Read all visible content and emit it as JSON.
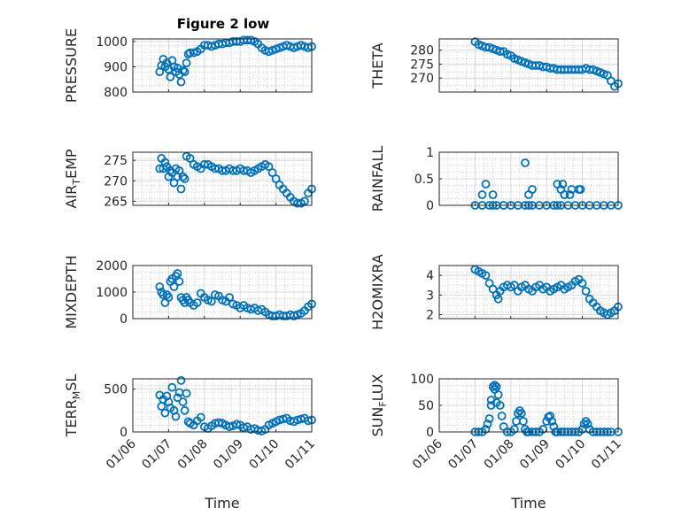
{
  "figure": {
    "title": "Figure 2 low",
    "marker_color": "#0072BD",
    "xlabel": "Time",
    "xtick_labels": [
      "01/06",
      "01/07",
      "01/08",
      "01/09",
      "01/10",
      "01/11"
    ]
  },
  "chart_data": [
    {
      "type": "scatter",
      "id": "pressure",
      "ylabel_main": "PRESSURE",
      "ylabel_sub": "",
      "xlim": [
        0,
        5
      ],
      "ylim": [
        800,
        1010
      ],
      "yticks": [
        800,
        900,
        1000
      ],
      "x": [
        0.75,
        0.8,
        0.85,
        0.9,
        0.95,
        1.0,
        1.05,
        1.1,
        1.15,
        1.2,
        1.25,
        1.3,
        1.35,
        1.4,
        1.45,
        1.5,
        1.55,
        1.6,
        1.7,
        1.8,
        1.9,
        2.0,
        2.1,
        2.2,
        2.3,
        2.4,
        2.5,
        2.6,
        2.7,
        2.8,
        2.9,
        3.0,
        3.1,
        3.2,
        3.3,
        3.4,
        3.5,
        3.6,
        3.7,
        3.8,
        3.9,
        4.0,
        4.1,
        4.2,
        4.3,
        4.4,
        4.5,
        4.6,
        4.7,
        4.8,
        4.9,
        5.0
      ],
      "y": [
        880,
        905,
        930,
        900,
        915,
        890,
        860,
        925,
        900,
        880,
        895,
        870,
        840,
        885,
        880,
        915,
        950,
        955,
        955,
        960,
        970,
        985,
        985,
        980,
        985,
        990,
        990,
        995,
        995,
        1000,
        1000,
        1000,
        1005,
        1005,
        1005,
        1000,
        990,
        975,
        965,
        960,
        965,
        970,
        975,
        980,
        985,
        980,
        975,
        980,
        985,
        980,
        975,
        980
      ]
    },
    {
      "type": "scatter",
      "id": "theta",
      "ylabel_main": "THETA",
      "ylabel_sub": "",
      "xlim": [
        0,
        5
      ],
      "ylim": [
        265,
        284
      ],
      "yticks": [
        270,
        275,
        280
      ],
      "x": [
        1.0,
        1.1,
        1.2,
        1.3,
        1.4,
        1.5,
        1.6,
        1.7,
        1.8,
        1.9,
        2.0,
        2.1,
        2.2,
        2.3,
        2.4,
        2.5,
        2.6,
        2.7,
        2.8,
        2.9,
        3.0,
        3.1,
        3.2,
        3.3,
        3.4,
        3.5,
        3.6,
        3.7,
        3.8,
        3.9,
        4.0,
        4.1,
        4.2,
        4.3,
        4.4,
        4.5,
        4.6,
        4.7,
        4.8,
        4.9,
        5.0
      ],
      "y": [
        283,
        282,
        281.5,
        281,
        281,
        280.5,
        280,
        279.5,
        279.5,
        278.5,
        278,
        277,
        276.5,
        276,
        275.5,
        275,
        274.5,
        274.5,
        274.5,
        274,
        274,
        273.5,
        273.5,
        273,
        273,
        273,
        273,
        273,
        273,
        273,
        273,
        273.5,
        273,
        273,
        272.5,
        272,
        271.5,
        271,
        269,
        267,
        268
      ]
    },
    {
      "type": "scatter",
      "id": "air_temp",
      "ylabel_main": "AIR",
      "ylabel_sub": "T",
      "ylabel_rest": "EMP",
      "xlim": [
        0,
        5
      ],
      "ylim": [
        264,
        277
      ],
      "yticks": [
        265,
        270,
        275
      ],
      "x": [
        0.75,
        0.8,
        0.85,
        0.9,
        0.95,
        1.0,
        1.05,
        1.1,
        1.15,
        1.2,
        1.25,
        1.3,
        1.35,
        1.4,
        1.45,
        1.5,
        1.6,
        1.7,
        1.8,
        1.9,
        2.0,
        2.1,
        2.2,
        2.3,
        2.4,
        2.5,
        2.6,
        2.7,
        2.8,
        2.9,
        3.0,
        3.1,
        3.2,
        3.3,
        3.4,
        3.5,
        3.6,
        3.7,
        3.8,
        3.9,
        4.0,
        4.1,
        4.2,
        4.3,
        4.4,
        4.5,
        4.6,
        4.7,
        4.8,
        4.9,
        5.0
      ],
      "y": [
        273,
        275.5,
        273,
        274.5,
        273.5,
        271,
        272.5,
        272,
        269.5,
        273,
        271,
        272.5,
        268,
        271,
        270.5,
        276,
        275.5,
        274,
        273.5,
        273,
        274,
        274,
        273.5,
        273,
        273,
        272.5,
        272.5,
        273,
        272.5,
        272.5,
        273,
        272.5,
        272.5,
        272,
        272.5,
        273,
        273.5,
        274,
        273.5,
        272,
        270.5,
        269,
        268,
        267,
        266,
        265,
        264.5,
        264.5,
        265,
        267,
        268
      ]
    },
    {
      "type": "scatter",
      "id": "rainfall",
      "ylabel_main": "RAINFALL",
      "ylabel_sub": "",
      "xlim": [
        0,
        5
      ],
      "ylim": [
        0,
        1
      ],
      "yticks": [
        0,
        0.5,
        1
      ],
      "x": [
        1.0,
        1.2,
        1.4,
        1.5,
        1.6,
        1.8,
        2.0,
        2.2,
        2.4,
        2.5,
        2.6,
        2.8,
        3.0,
        3.2,
        3.3,
        3.4,
        3.6,
        3.8,
        4.0,
        4.2,
        4.4,
        4.6,
        4.8,
        5.0,
        1.2,
        1.3,
        1.5,
        2.4,
        2.5,
        2.6,
        3.3,
        3.4,
        3.5,
        3.7,
        3.9,
        3.95,
        3.45,
        3.5,
        3.65
      ],
      "y": [
        0,
        0,
        0,
        0,
        0,
        0,
        0,
        0,
        0,
        0,
        0,
        0,
        0,
        0,
        0,
        0,
        0,
        0,
        0,
        0,
        0,
        0,
        0,
        0,
        0.2,
        0.4,
        0.2,
        0.8,
        0.2,
        0.3,
        0.4,
        0.3,
        0.2,
        0.3,
        0.3,
        0.3,
        0.4,
        0.2,
        0.2
      ]
    },
    {
      "type": "scatter",
      "id": "mixdepth",
      "ylabel_main": "MIXDEPTH",
      "ylabel_sub": "",
      "xlim": [
        0,
        5
      ],
      "ylim": [
        0,
        2000
      ],
      "yticks": [
        0,
        1000,
        2000
      ],
      "x": [
        0.75,
        0.8,
        0.85,
        0.9,
        0.95,
        1.0,
        1.05,
        1.1,
        1.15,
        1.2,
        1.25,
        1.3,
        1.35,
        1.4,
        1.45,
        1.5,
        1.55,
        1.6,
        1.7,
        1.8,
        1.9,
        2.0,
        2.1,
        2.2,
        2.3,
        2.4,
        2.5,
        2.6,
        2.7,
        2.8,
        2.9,
        3.0,
        3.1,
        3.2,
        3.3,
        3.4,
        3.5,
        3.6,
        3.7,
        3.8,
        3.9,
        4.0,
        4.1,
        4.2,
        4.3,
        4.4,
        4.5,
        4.6,
        4.7,
        4.8,
        4.9,
        5.0
      ],
      "y": [
        1200,
        1000,
        900,
        600,
        900,
        800,
        1400,
        1500,
        1200,
        1600,
        1700,
        1400,
        800,
        700,
        600,
        800,
        700,
        600,
        500,
        600,
        950,
        800,
        700,
        650,
        900,
        850,
        700,
        650,
        800,
        550,
        500,
        400,
        500,
        400,
        350,
        400,
        300,
        350,
        250,
        150,
        100,
        100,
        150,
        100,
        100,
        150,
        100,
        150,
        200,
        300,
        450,
        550
      ]
    },
    {
      "type": "scatter",
      "id": "h2omixra",
      "ylabel_main": "H2OMIXRA",
      "ylabel_sub": "",
      "xlim": [
        0,
        5
      ],
      "ylim": [
        1.8,
        4.5
      ],
      "yticks": [
        2,
        3,
        4
      ],
      "x": [
        1.0,
        1.1,
        1.2,
        1.3,
        1.4,
        1.5,
        1.6,
        1.7,
        1.8,
        1.9,
        2.0,
        2.1,
        2.2,
        2.3,
        2.4,
        2.5,
        2.6,
        2.7,
        2.8,
        2.9,
        3.0,
        3.1,
        3.2,
        3.3,
        3.4,
        3.5,
        3.6,
        3.7,
        3.8,
        3.9,
        4.0,
        4.1,
        4.2,
        4.3,
        4.4,
        4.5,
        4.6,
        4.7,
        4.8,
        4.9,
        5.0,
        1.65
      ],
      "y": [
        4.3,
        4.2,
        4.1,
        4.0,
        3.6,
        3.3,
        3.0,
        3.2,
        3.4,
        3.5,
        3.4,
        3.5,
        3.2,
        3.4,
        3.5,
        3.3,
        3.2,
        3.4,
        3.5,
        3.3,
        3.4,
        3.2,
        3.3,
        3.4,
        3.5,
        3.3,
        3.4,
        3.5,
        3.7,
        3.8,
        3.6,
        3.2,
        2.8,
        2.6,
        2.4,
        2.2,
        2.1,
        2.0,
        2.1,
        2.2,
        2.4,
        2.8
      ]
    },
    {
      "type": "scatter",
      "id": "terr_msl",
      "ylabel_main": "TERR",
      "ylabel_sub": "M",
      "ylabel_rest": "SL",
      "xlim": [
        0,
        5
      ],
      "ylim": [
        0,
        620
      ],
      "yticks": [
        0,
        500
      ],
      "x": [
        0.75,
        0.8,
        0.85,
        0.9,
        0.95,
        1.0,
        1.05,
        1.1,
        1.15,
        1.2,
        1.25,
        1.3,
        1.35,
        1.4,
        1.45,
        1.5,
        1.55,
        1.6,
        1.7,
        1.8,
        1.9,
        2.0,
        2.1,
        2.2,
        2.3,
        2.4,
        2.5,
        2.6,
        2.7,
        2.8,
        2.9,
        3.0,
        3.1,
        3.2,
        3.3,
        3.4,
        3.5,
        3.6,
        3.7,
        3.8,
        3.9,
        4.0,
        4.1,
        4.2,
        4.3,
        4.4,
        4.5,
        4.6,
        4.7,
        4.8,
        4.9,
        5.0
      ],
      "y": [
        430,
        300,
        380,
        220,
        420,
        350,
        280,
        520,
        250,
        180,
        400,
        460,
        600,
        350,
        250,
        450,
        120,
        100,
        80,
        130,
        170,
        60,
        40,
        70,
        100,
        110,
        100,
        80,
        60,
        70,
        90,
        80,
        50,
        60,
        30,
        40,
        20,
        10,
        30,
        80,
        100,
        120,
        140,
        150,
        160,
        130,
        120,
        140,
        150,
        160,
        130,
        140
      ]
    },
    {
      "type": "scatter",
      "id": "sun_flux",
      "ylabel_main": "SUN",
      "ylabel_sub": "F",
      "ylabel_rest": "LUX",
      "xlim": [
        0,
        5
      ],
      "ylim": [
        0,
        100
      ],
      "yticks": [
        0,
        50,
        100
      ],
      "x": [
        1.0,
        1.1,
        1.2,
        1.3,
        1.35,
        1.4,
        1.45,
        1.5,
        1.55,
        1.6,
        1.65,
        1.7,
        1.75,
        1.8,
        1.9,
        2.0,
        2.1,
        2.15,
        2.2,
        2.25,
        2.3,
        2.35,
        2.4,
        2.45,
        2.5,
        2.6,
        2.7,
        2.8,
        2.9,
        3.0,
        3.05,
        3.1,
        3.15,
        3.2,
        3.25,
        3.3,
        3.4,
        3.5,
        3.6,
        3.7,
        3.8,
        3.9,
        4.0,
        4.05,
        4.1,
        4.15,
        4.2,
        4.3,
        4.4,
        4.5,
        4.6,
        4.7,
        4.8,
        5.0,
        1.45,
        1.55,
        1.6
      ],
      "y": [
        0,
        0,
        0,
        5,
        15,
        25,
        50,
        85,
        88,
        85,
        70,
        50,
        30,
        10,
        0,
        0,
        5,
        20,
        35,
        40,
        35,
        20,
        5,
        0,
        0,
        0,
        0,
        0,
        5,
        20,
        28,
        30,
        20,
        10,
        0,
        0,
        0,
        0,
        0,
        0,
        0,
        0,
        5,
        15,
        20,
        15,
        5,
        0,
        0,
        0,
        0,
        0,
        0,
        0,
        60,
        80,
        55
      ]
    }
  ]
}
